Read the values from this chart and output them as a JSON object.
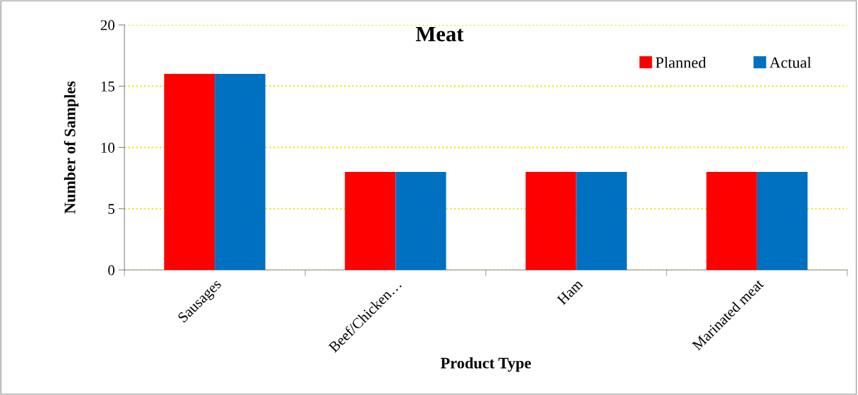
{
  "chart_data": {
    "type": "bar",
    "title": "Meat",
    "xlabel": "Product Type",
    "ylabel": "Number of Samples",
    "categories": [
      "Sausages",
      "Beef/Chicken…",
      "Ham",
      "Marinated meat"
    ],
    "series": [
      {
        "name": "Planned",
        "color": "#ff0000",
        "values": [
          16,
          8,
          8,
          8
        ]
      },
      {
        "name": "Actual",
        "color": "#0070c0",
        "values": [
          16,
          8,
          8,
          8
        ]
      }
    ],
    "ylim": [
      0,
      20
    ],
    "yticks": [
      0,
      5,
      10,
      15,
      20
    ],
    "grid": "y",
    "legend": "top right"
  }
}
